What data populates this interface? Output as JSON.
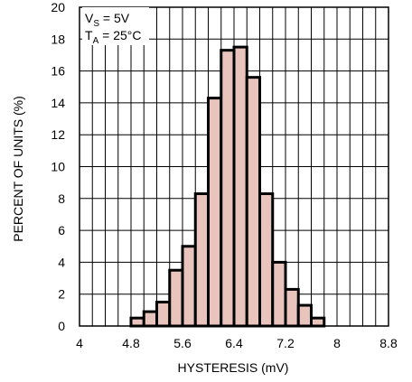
{
  "chart_data": {
    "type": "bar",
    "title": "",
    "xlabel": "HYSTERESIS (mV)",
    "ylabel": "PERCENT OF UNITS (%)",
    "xlim": [
      4,
      8.8
    ],
    "ylim": [
      0,
      20
    ],
    "x_ticks": [
      "4",
      "4.8",
      "5.6",
      "6.4",
      "7.2",
      "8",
      "8.8"
    ],
    "y_ticks": [
      "0",
      "2",
      "4",
      "6",
      "8",
      "10",
      "12",
      "14",
      "16",
      "18",
      "20"
    ],
    "grid": true,
    "bin_width": 0.2,
    "bins_start": [
      4.8,
      5.0,
      5.2,
      5.4,
      5.6,
      5.8,
      6.0,
      6.2,
      6.4,
      6.6,
      6.8,
      7.0,
      7.2,
      7.4,
      7.6
    ],
    "values": [
      0.5,
      0.9,
      1.5,
      3.5,
      5.0,
      8.3,
      14.3,
      17.3,
      17.5,
      15.6,
      8.3,
      4.0,
      2.3,
      1.3,
      0.5
    ],
    "bar_color": "#e8c4bc",
    "annotation": {
      "vs_main": "V",
      "vs_sub": "S",
      "vs_value": " = 5V",
      "ta_main": "T",
      "ta_sub": "A",
      "ta_value": " = 25°C"
    }
  }
}
